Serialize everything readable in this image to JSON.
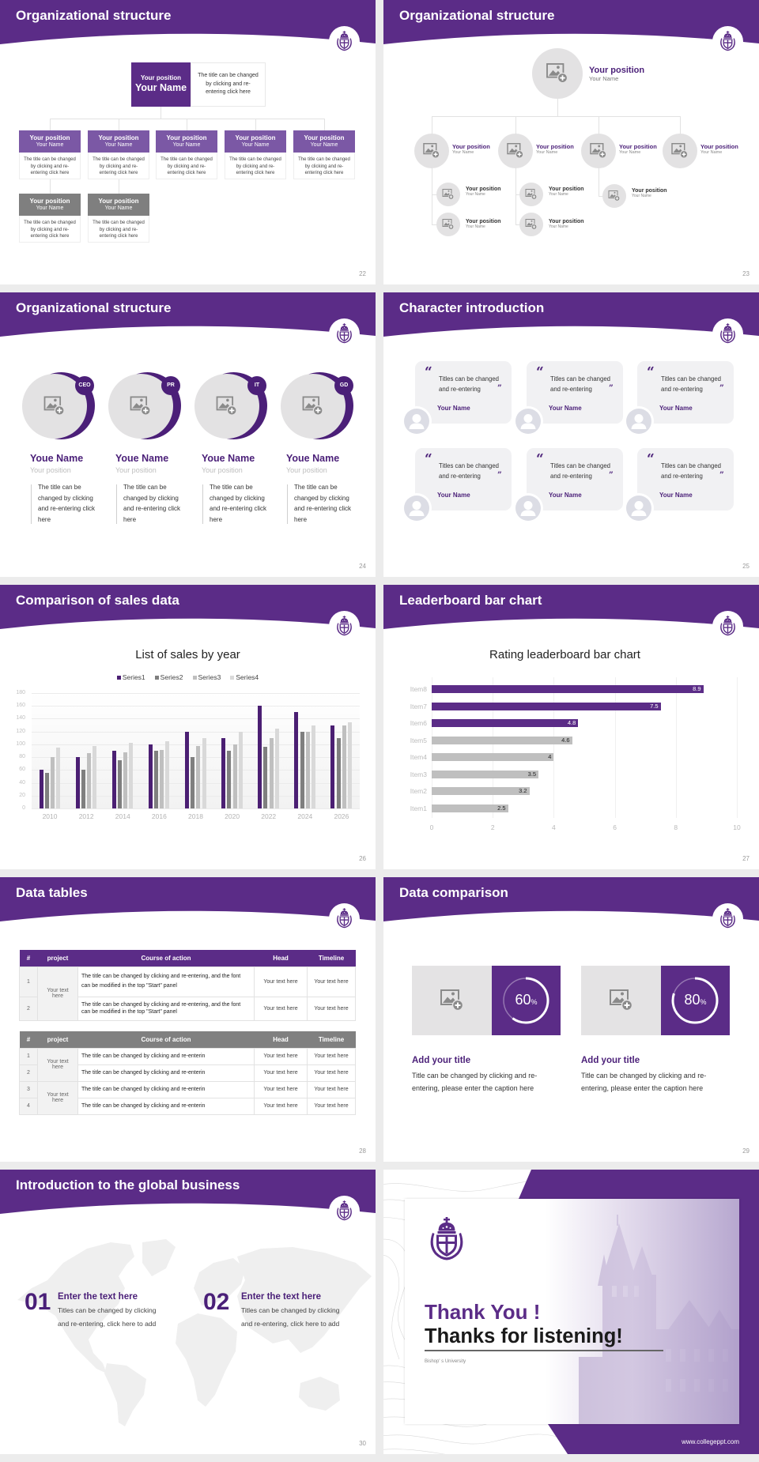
{
  "theme": {
    "primary_purple": "#5b2c87",
    "text_purple": "#4a1f78",
    "light_purple_header": "#7b58a5",
    "gray_header": "#7f7f7f",
    "page_background": "#ececec"
  },
  "slides": [
    {
      "title": "Organizational structure",
      "page": "22",
      "top": {
        "position": "Your position",
        "name": "Your Name",
        "desc": "The title can be changed by clicking and re-entering click here"
      },
      "row1": [
        {
          "position": "Your position",
          "name": "Your Name",
          "desc": "The title can be changed by clicking and re-entering click here"
        },
        {
          "position": "Your position",
          "name": "Your Name",
          "desc": "The title can be changed by clicking and re-entering click here"
        },
        {
          "position": "Your position",
          "name": "Your Name",
          "desc": "The title can be changed by clicking and re-entering click here"
        },
        {
          "position": "Your position",
          "name": "Your Name",
          "desc": "The title can be changed by clicking and re-entering click here"
        },
        {
          "position": "Your position",
          "name": "Your Name",
          "desc": "The title can be changed by clicking and re-entering click here"
        }
      ],
      "row2": [
        {
          "position": "Your position",
          "name": "Your Name",
          "desc": "The title can be changed by clicking and re-entering click here"
        },
        {
          "position": "Your position",
          "name": "Your Name",
          "desc": "The title can be changed by clicking and re-entering click here"
        }
      ]
    },
    {
      "title": "Organizational structure",
      "page": "23",
      "top": {
        "position": "Your position",
        "name": "Your Name"
      },
      "level2": [
        {
          "position": "Your position",
          "name": "Your Name"
        },
        {
          "position": "Your position",
          "name": "Your Name"
        },
        {
          "position": "Your position",
          "name": "Your Name"
        },
        {
          "position": "Your position",
          "name": "Your Name"
        }
      ],
      "level3": [
        {
          "position": "Your position",
          "name": "Your Name"
        },
        {
          "position": "Your position",
          "name": "Your Name"
        },
        {
          "position": "Your position",
          "name": "Your Name"
        },
        {
          "position": "Your position",
          "name": "Your Name"
        },
        {
          "position": "Your position",
          "name": "Your Name"
        }
      ]
    },
    {
      "title": "Organizational structure",
      "page": "24",
      "members": [
        {
          "badge": "CEO",
          "name": "Youe Name",
          "position": "Your position",
          "desc": "The title can be changed by clicking and re-entering click here"
        },
        {
          "badge": "PR",
          "name": "Youe Name",
          "position": "Your position",
          "desc": "The title can be changed by clicking and re-entering click here"
        },
        {
          "badge": "IT",
          "name": "Youe Name",
          "position": "Your position",
          "desc": "The title can be changed by clicking and re-entering click here"
        },
        {
          "badge": "GD",
          "name": "Youe Name",
          "position": "Your position",
          "desc": "The title can be changed by clicking and re-entering click here"
        }
      ]
    },
    {
      "title": "Character introduction",
      "page": "25",
      "open_quote": "“",
      "close_quote": "”",
      "cards": [
        {
          "quote": "Titles can be changed and re-entering",
          "name": "Your Name"
        },
        {
          "quote": "Titles can be changed and re-entering",
          "name": "Your Name"
        },
        {
          "quote": "Titles can be changed and re-entering",
          "name": "Your Name"
        },
        {
          "quote": "Titles can be changed and re-entering",
          "name": "Your Name"
        },
        {
          "quote": "Titles can be changed and re-entering",
          "name": "Your Name"
        },
        {
          "quote": "Titles can be changed and re-entering",
          "name": "Your Name"
        }
      ]
    },
    {
      "title": "Comparison of sales data",
      "page": "26"
    },
    {
      "title": "Leaderboard bar chart",
      "page": "27"
    },
    {
      "title": "Data tables",
      "page": "28",
      "table1": {
        "headers": [
          "#",
          "project",
          "Course of action",
          "Head",
          "Timeline"
        ],
        "rows": [
          {
            "num": "1",
            "project": "Your text here",
            "course": "The title can be changed by clicking and re-entering, and the font can be modified in the top \"Start\" panel",
            "head": "Your text here",
            "timeline": "Your text here"
          },
          {
            "num": "2",
            "project": "Your text here",
            "course": "The title can be changed by clicking and re-entering, and the font can be modified in the top \"Start\" panel",
            "head": "Your text here",
            "timeline": "Your text here"
          }
        ]
      },
      "table2": {
        "headers": [
          "#",
          "project",
          "Course of action",
          "Head",
          "Timeline"
        ],
        "rows": [
          {
            "num": "1",
            "project": "Your text here",
            "course": "The title can be changed by clicking and re-enterin",
            "head": "Your text here",
            "timeline": "Your text here"
          },
          {
            "num": "2",
            "project": "Your text here",
            "course": "The title can be changed by clicking and re-enterin",
            "head": "Your text here",
            "timeline": "Your text here"
          },
          {
            "num": "3",
            "project": "Your text here",
            "course": "The title can be changed by clicking and re-enterin",
            "head": "Your text here",
            "timeline": "Your text here"
          },
          {
            "num": "4",
            "project": "Your text here",
            "course": "The title can be changed by clicking and re-enterin",
            "head": "Your text here",
            "timeline": "Your text here"
          }
        ]
      }
    },
    {
      "title": "Data comparison",
      "page": "29",
      "items": [
        {
          "percent": "60",
          "unit": "%",
          "title": "Add your title",
          "body": "Title can be changed by clicking and re-entering, please enter the caption here"
        },
        {
          "percent": "80",
          "unit": "%",
          "title": "Add your title",
          "body": "Title can be changed by clicking and re-entering, please enter the caption here"
        }
      ]
    },
    {
      "title": "Introduction to the global business",
      "page": "30",
      "items": [
        {
          "number": "01",
          "heading": "Enter the text here",
          "body": "Titles can be changed by clicking and re-entering, click here to add"
        },
        {
          "number": "02",
          "heading": "Enter the text here",
          "body": "Titles can be changed by clicking and re-entering, click here to add"
        }
      ]
    },
    {
      "thank_you": "Thank You !",
      "thanks": "Thanks for listening!",
      "university": "Bishop' s University",
      "website": "www.collegeppt.com"
    }
  ],
  "chart_data": [
    {
      "type": "bar",
      "title": "List of sales by year",
      "categories": [
        "2010",
        "2012",
        "2014",
        "2016",
        "2018",
        "2020",
        "2022",
        "2024",
        "2026"
      ],
      "series": [
        {
          "name": "Series1",
          "color": "#4b1f73",
          "values": [
            60,
            80,
            90,
            100,
            120,
            110,
            160,
            150,
            130
          ]
        },
        {
          "name": "Series2",
          "color": "#7f7f7f",
          "values": [
            55,
            60,
            75,
            90,
            80,
            90,
            96,
            120,
            110
          ]
        },
        {
          "name": "Series3",
          "color": "#bfbfbf",
          "values": [
            80,
            86,
            88,
            91,
            98,
            100,
            110,
            120,
            130
          ]
        },
        {
          "name": "Series4",
          "color": "#d9d9d9",
          "values": [
            95,
            98,
            102,
            105,
            110,
            120,
            125,
            130,
            135
          ]
        }
      ],
      "xlabel": "",
      "ylabel": "",
      "ylim": [
        0,
        180
      ],
      "yticks": [
        0,
        20,
        40,
        60,
        80,
        100,
        120,
        140,
        160,
        180
      ],
      "grid": true,
      "legend_position": "top"
    },
    {
      "type": "bar",
      "orientation": "horizontal",
      "title": "Rating leaderboard bar chart",
      "categories": [
        "Item1",
        "Item2",
        "Item3",
        "Item4",
        "Item5",
        "Item6",
        "Item7",
        "Item8"
      ],
      "values": [
        2.5,
        3.2,
        3.5,
        4,
        4.6,
        4.8,
        7.5,
        8.9
      ],
      "colors": [
        "#bfbfbf",
        "#bfbfbf",
        "#bfbfbf",
        "#bfbfbf",
        "#bfbfbf",
        "#5b2c87",
        "#5b2c87",
        "#5b2c87"
      ],
      "label_colors": [
        "#222222",
        "#222222",
        "#222222",
        "#222222",
        "#222222",
        "#ffffff",
        "#ffffff",
        "#ffffff"
      ],
      "xlabel": "",
      "ylabel": "",
      "xlim": [
        0,
        10
      ],
      "xticks": [
        0,
        2,
        4,
        6,
        8,
        10
      ],
      "grid": true,
      "legend_position": "none"
    }
  ]
}
